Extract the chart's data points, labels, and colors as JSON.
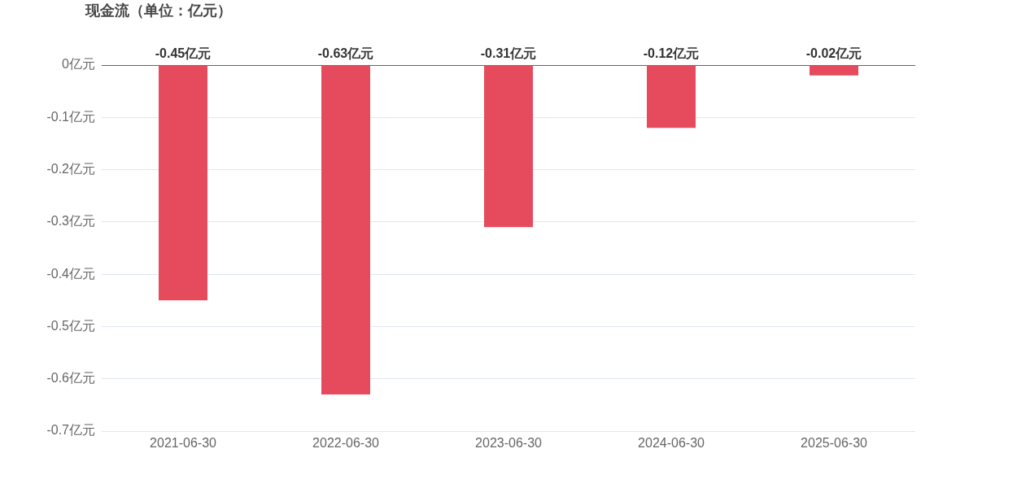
{
  "chart_data": {
    "type": "bar",
    "title": "现金流（单位：亿元）",
    "categories": [
      "2021-06-30",
      "2022-06-30",
      "2023-06-30",
      "2024-06-30",
      "2025-06-30"
    ],
    "values": [
      -0.45,
      -0.63,
      -0.31,
      -0.12,
      -0.02
    ],
    "value_labels": [
      "-0.45亿元",
      "-0.63亿元",
      "-0.31亿元",
      "-0.12亿元",
      "-0.02亿元"
    ],
    "color": "#e64b5d",
    "ylim": [
      -0.7,
      0
    ],
    "yticks": [
      {
        "value": 0,
        "label": "0亿元"
      },
      {
        "value": -0.1,
        "label": "-0.1亿元"
      },
      {
        "value": -0.2,
        "label": "-0.2亿元"
      },
      {
        "value": -0.3,
        "label": "-0.3亿元"
      },
      {
        "value": -0.4,
        "label": "-0.4亿元"
      },
      {
        "value": -0.5,
        "label": "-0.5亿元"
      },
      {
        "value": -0.6,
        "label": "-0.6亿元"
      },
      {
        "value": -0.7,
        "label": "-0.7亿元"
      }
    ],
    "grid": "y",
    "legend": false
  }
}
